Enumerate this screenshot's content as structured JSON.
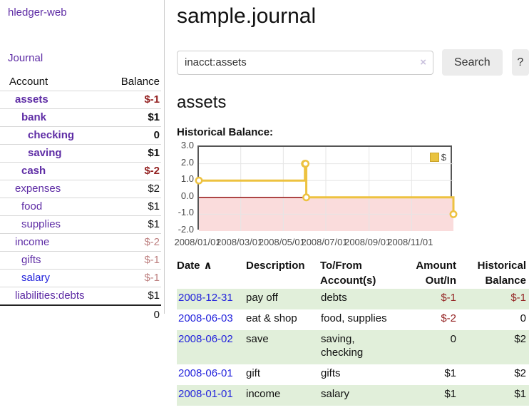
{
  "colors": {
    "purple_link": "#5e2ca5",
    "blue_link": "#2323dc",
    "negative_strong": "#942222",
    "negative_soft": "#bd7f7f",
    "row_green": "#e1efda",
    "chart_line": "#edc240",
    "chart_zero_line": "#8b0000",
    "chart_negative_fill": "#fadcdc",
    "grid_line": "#e5e5e5"
  },
  "sidebar": {
    "brand": "hledger-web",
    "journal_label": "Journal",
    "accounts": {
      "account_header": "Account",
      "balance_header": "Balance",
      "rows": [
        {
          "account": "assets",
          "balance": "$-1",
          "depth": 1,
          "bold": true,
          "neg": "strong",
          "link": "purple"
        },
        {
          "account": "bank",
          "balance": "$1",
          "depth": 2,
          "bold": true,
          "neg": "none",
          "link": "purple"
        },
        {
          "account": "checking",
          "balance": "0",
          "depth": 3,
          "bold": true,
          "neg": "none",
          "link": "purple"
        },
        {
          "account": "saving",
          "balance": "$1",
          "depth": 3,
          "bold": true,
          "neg": "none",
          "link": "purple"
        },
        {
          "account": "cash",
          "balance": "$-2",
          "depth": 2,
          "bold": true,
          "neg": "strong",
          "link": "purple"
        },
        {
          "account": "expenses",
          "balance": "$2",
          "depth": 1,
          "bold": false,
          "neg": "none",
          "link": "purple"
        },
        {
          "account": "food",
          "balance": "$1",
          "depth": 2,
          "bold": false,
          "neg": "none",
          "link": "purple"
        },
        {
          "account": "supplies",
          "balance": "$1",
          "depth": 2,
          "bold": false,
          "neg": "none",
          "link": "purple"
        },
        {
          "account": "income",
          "balance": "$-2",
          "depth": 1,
          "bold": false,
          "neg": "soft",
          "link": "purple"
        },
        {
          "account": "gifts",
          "balance": "$-1",
          "depth": 2,
          "bold": false,
          "neg": "soft",
          "link": "purple"
        },
        {
          "account": "salary",
          "balance": "$-1",
          "depth": 2,
          "bold": false,
          "neg": "soft",
          "link": "blue"
        },
        {
          "account": "liabilities:debts",
          "balance": "$1",
          "depth": 1,
          "bold": false,
          "neg": "none",
          "link": "purple"
        }
      ],
      "total": "0"
    }
  },
  "main": {
    "title": "sample.journal",
    "search": {
      "value": "inacct:assets",
      "clear_icon": "×",
      "button_label": "Search",
      "help_label": "?"
    },
    "account_heading": "assets",
    "chart_title": "Historical Balance:",
    "chart_data": {
      "type": "line",
      "step": true,
      "series": [
        {
          "name": "$",
          "color": "#edc240",
          "x": [
            "2008-01-01",
            "2008-06-01",
            "2008-06-02",
            "2008-06-03",
            "2008-12-31"
          ],
          "y": [
            1,
            2,
            2,
            0,
            -1
          ]
        }
      ],
      "ylim": [
        -2,
        3
      ],
      "y_ticks": [
        {
          "label": "3.0",
          "value": 3
        },
        {
          "label": "2.0",
          "value": 2
        },
        {
          "label": "1.0",
          "value": 1
        },
        {
          "label": "0.0",
          "value": 0
        },
        {
          "label": "-1.0",
          "value": -1
        },
        {
          "label": "-2.0",
          "value": -2
        }
      ],
      "x_ticks": [
        {
          "label": "2008/01/01",
          "date": "2008-01-01"
        },
        {
          "label": "2008/03/01",
          "date": "2008-03-01"
        },
        {
          "label": "2008/05/01",
          "date": "2008-05-01"
        },
        {
          "label": "2008/07/01",
          "date": "2008-07-01"
        },
        {
          "label": "2008/09/01",
          "date": "2008-09-01"
        },
        {
          "label": "2008/11/01",
          "date": "2008-11-01"
        }
      ],
      "legend": {
        "label": "$",
        "position": "top-right"
      },
      "zero_line": true,
      "negative_region_shaded": true
    },
    "register": {
      "headers": {
        "date": "Date",
        "sort_icon": "∧",
        "description": "Description",
        "accounts": "To/From\nAccount(s)",
        "amount": "Amount\nOut/In",
        "balance": "Historical\nBalance"
      },
      "rows": [
        {
          "date": "2008-12-31",
          "description": "pay off",
          "accounts": "debts",
          "amount": "$-1",
          "balance": "$-1",
          "amount_neg": true,
          "balance_neg": true
        },
        {
          "date": "2008-06-03",
          "description": "eat & shop",
          "accounts": "food, supplies",
          "amount": "$-2",
          "balance": "0",
          "amount_neg": true,
          "balance_neg": false
        },
        {
          "date": "2008-06-02",
          "description": "save",
          "accounts": "saving,\nchecking",
          "amount": "0",
          "balance": "$2",
          "amount_neg": false,
          "balance_neg": false
        },
        {
          "date": "2008-06-01",
          "description": "gift",
          "accounts": "gifts",
          "amount": "$1",
          "balance": "$2",
          "amount_neg": false,
          "balance_neg": false
        },
        {
          "date": "2008-01-01",
          "description": "income",
          "accounts": "salary",
          "amount": "$1",
          "balance": "$1",
          "amount_neg": false,
          "balance_neg": false
        }
      ]
    }
  }
}
